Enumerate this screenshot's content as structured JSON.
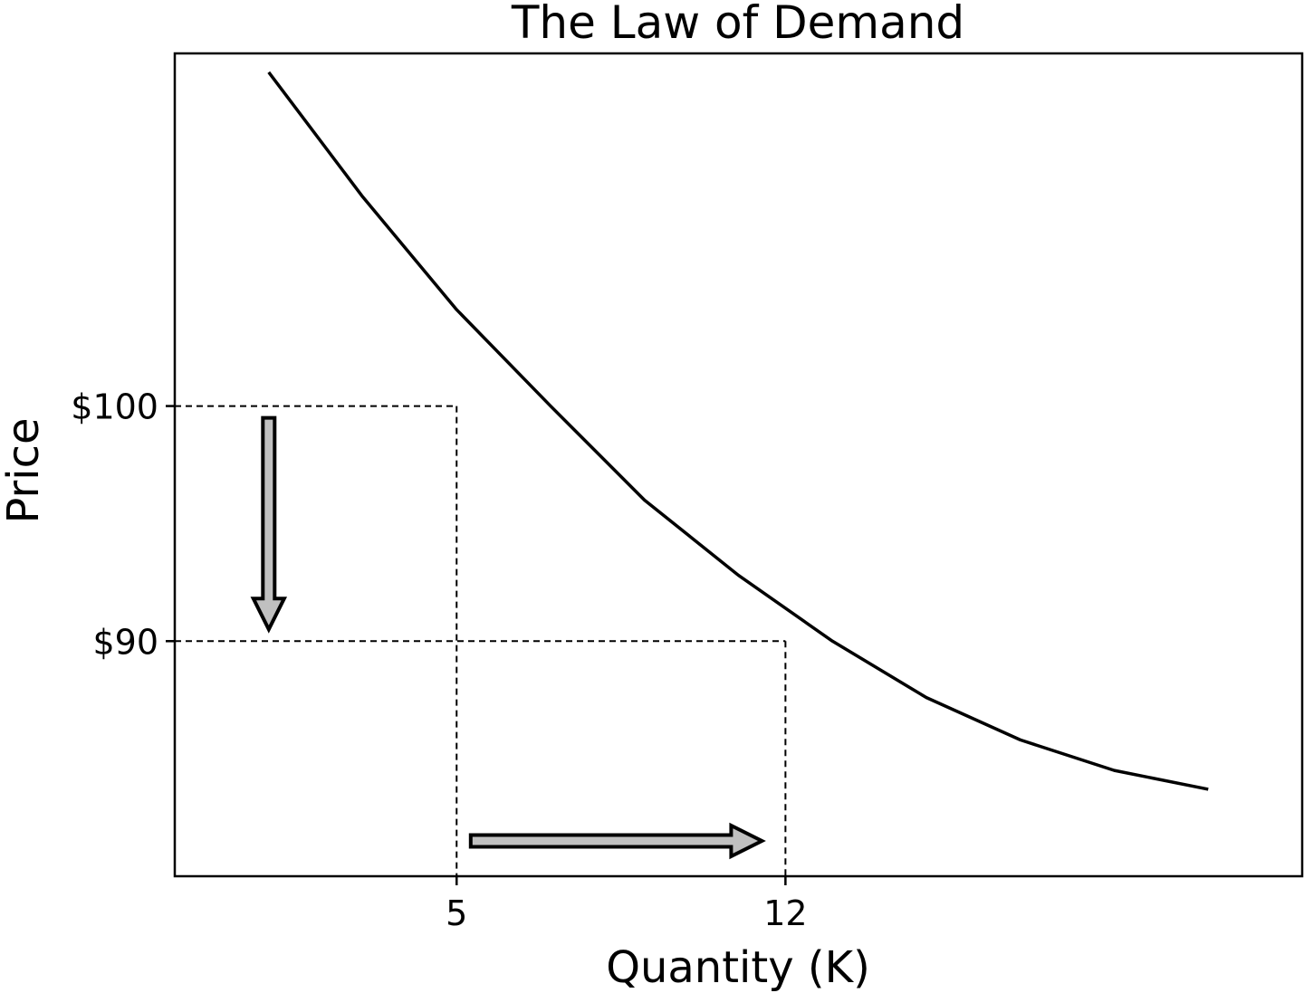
{
  "chart_data": {
    "type": "line",
    "title": "The Law of Demand",
    "xlabel": "Quantity (K)",
    "ylabel": "Price",
    "xlim": [
      -1,
      23
    ],
    "ylim": [
      80,
      115
    ],
    "xticks": [
      {
        "value": 5,
        "label": "5"
      },
      {
        "value": 12,
        "label": "12"
      }
    ],
    "yticks": [
      {
        "value": 100,
        "label": "$100"
      },
      {
        "value": 90,
        "label": "$90"
      }
    ],
    "grid": false,
    "series": [
      {
        "x": [
          1,
          3,
          5,
          7,
          9,
          11,
          13,
          15,
          17,
          19,
          21
        ],
        "y": [
          114.2,
          108.9,
          104.1,
          100.0,
          96.0,
          92.8,
          90.0,
          87.6,
          85.8,
          84.5,
          83.7
        ],
        "color": "#000000"
      }
    ],
    "reference_points": [
      {
        "x": 5,
        "y": 100
      },
      {
        "x": 12,
        "y": 90
      }
    ],
    "arrows": [
      {
        "from": [
          1,
          99.5
        ],
        "to": [
          1,
          90.5
        ],
        "direction": "down"
      },
      {
        "from": [
          5.3,
          81.5
        ],
        "to": [
          11.5,
          81.5
        ],
        "direction": "right"
      }
    ],
    "colors": {
      "line": "#000000",
      "arrow_fill": "#c0c0c0",
      "arrow_stroke": "#000000"
    }
  }
}
